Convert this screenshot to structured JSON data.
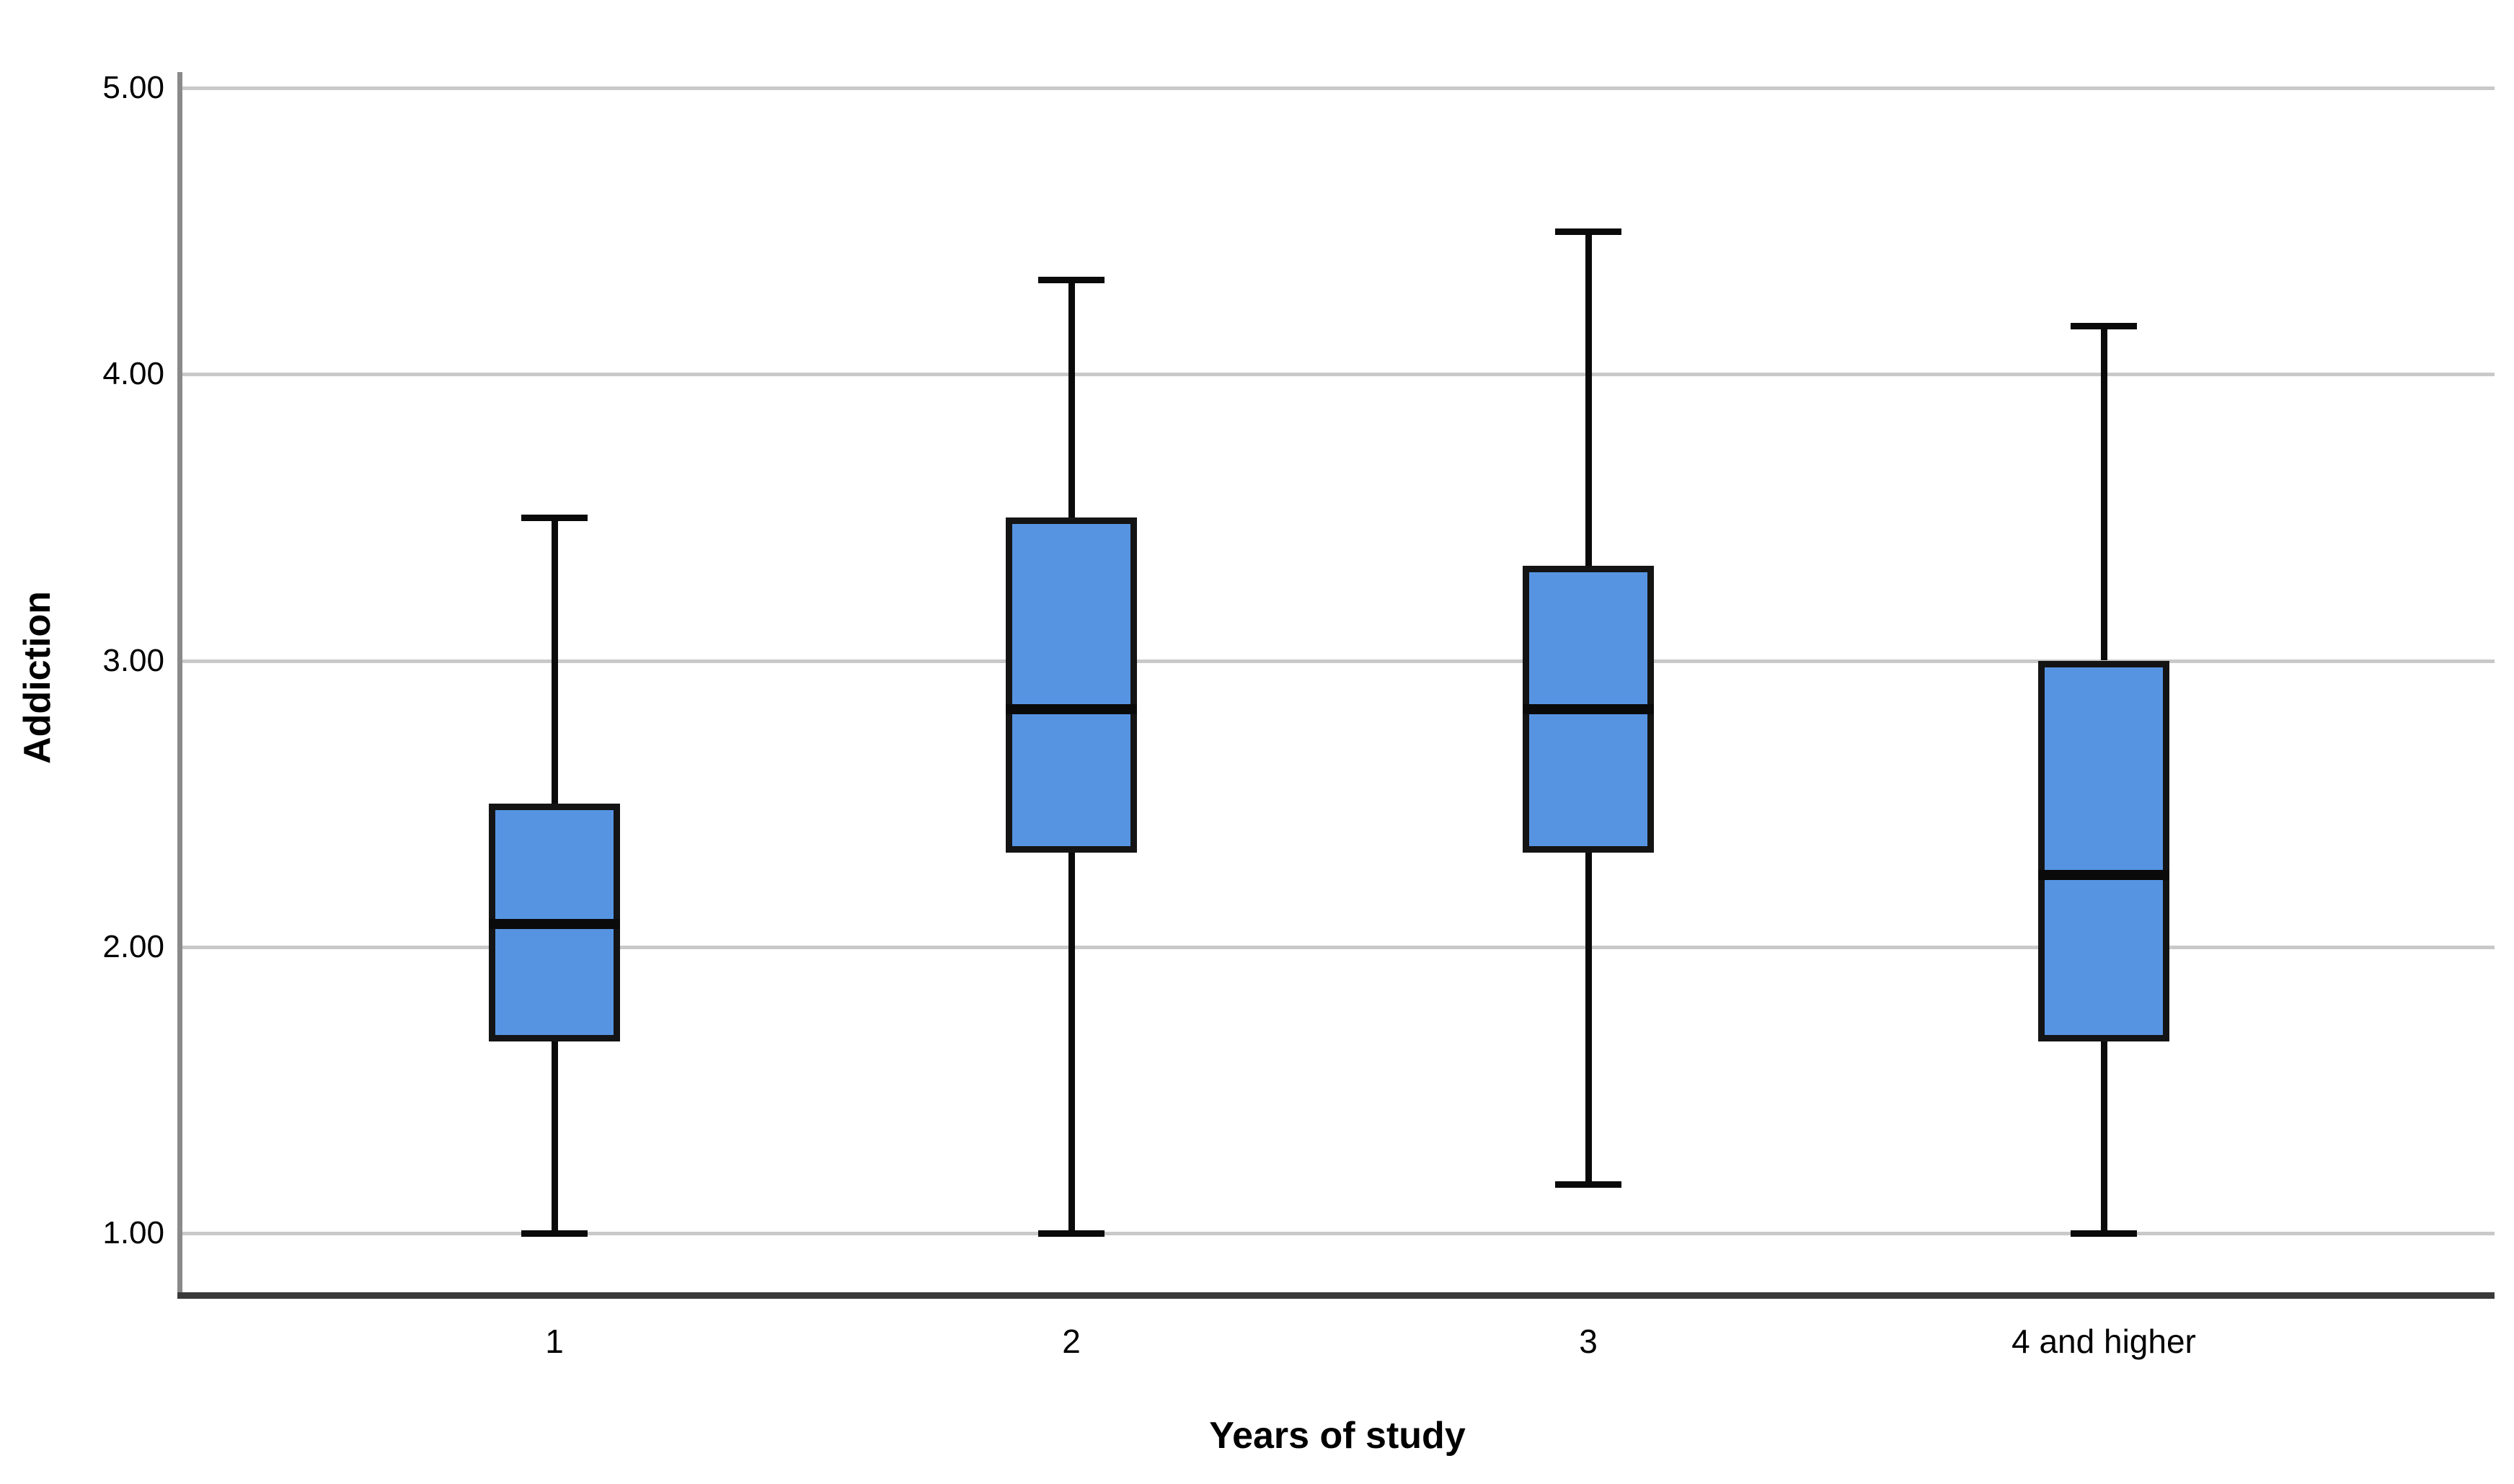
{
  "chart_data": {
    "type": "boxplot",
    "title": "",
    "xlabel": "Years of study",
    "ylabel": "Addiction",
    "ylim": [
      1,
      5
    ],
    "grid": true,
    "legend": "none",
    "yticks": [
      {
        "value": 5,
        "label": "5.00"
      },
      {
        "value": 4,
        "label": "4.00"
      },
      {
        "value": 3,
        "label": "3.00"
      },
      {
        "value": 2,
        "label": "2.00"
      },
      {
        "value": 1,
        "label": "1.00"
      }
    ],
    "categories": [
      "1",
      "2",
      "3",
      "4 and higher"
    ],
    "boxes": [
      {
        "category": "1",
        "whisker_low": 1.0,
        "q1": 1.67,
        "median": 2.08,
        "q3": 2.5,
        "whisker_high": 3.5
      },
      {
        "category": "2",
        "whisker_low": 1.0,
        "q1": 2.33,
        "median": 2.83,
        "q3": 3.5,
        "whisker_high": 4.33
      },
      {
        "category": "3",
        "whisker_low": 1.17,
        "q1": 2.33,
        "median": 2.83,
        "q3": 3.33,
        "whisker_high": 4.5
      },
      {
        "category": "4 and higher",
        "whisker_low": 1.0,
        "q1": 1.67,
        "median": 2.25,
        "q3": 3.0,
        "whisker_high": 4.17
      }
    ],
    "colors": {
      "box_fill": "#5694E2",
      "box_border": "#141414",
      "median": "#0a0a0a",
      "whisker": "#0a0a0a",
      "gridline": "#c9c9c9",
      "y_axis_line": "#8a8a8a",
      "x_axis_line": "#3a3a3a",
      "text": "#000000"
    }
  }
}
